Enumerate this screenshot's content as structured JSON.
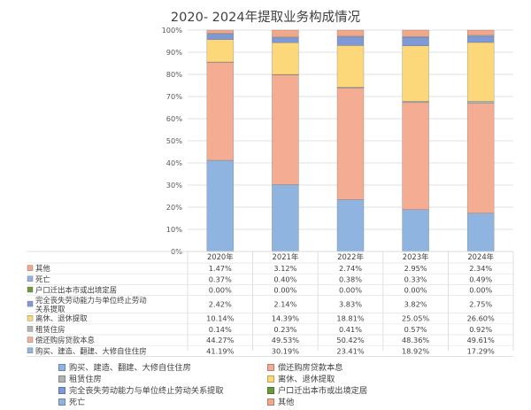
{
  "chart_data": {
    "type": "stacked-bar-100",
    "title": "2020- 2024年提取业务构成情况",
    "categories": [
      "2020年",
      "2021年",
      "2022年",
      "2023年",
      "2024年"
    ],
    "y_ticks": [
      "0%",
      "10%",
      "20%",
      "30%",
      "40%",
      "50%",
      "60%",
      "70%",
      "80%",
      "90%",
      "100%"
    ],
    "ylim": [
      0,
      100
    ],
    "grid": true,
    "legend_position": "bottom",
    "series": [
      {
        "key": "s1",
        "name": "购买、建造、翻建、大修自住住房",
        "color": "#8fb4e0",
        "values": [
          41.19,
          30.19,
          23.41,
          18.92,
          17.29
        ],
        "labels": [
          "41.19%",
          "30.19%",
          "23.41%",
          "18.92%",
          "17.29%"
        ]
      },
      {
        "key": "s2",
        "name": "偿还购房贷款本息",
        "color": "#f4ad92",
        "values": [
          44.27,
          49.53,
          50.42,
          48.36,
          49.61
        ],
        "labels": [
          "44.27%",
          "49.53%",
          "50.42%",
          "48.36%",
          "49.61%"
        ]
      },
      {
        "key": "s3",
        "name": "租赁住房",
        "color": "#b4b4b4",
        "values": [
          0.14,
          0.23,
          0.41,
          0.57,
          0.92
        ],
        "labels": [
          "0.14%",
          "0.23%",
          "0.41%",
          "0.57%",
          "0.92%"
        ]
      },
      {
        "key": "s4",
        "name": "离休、退休提取",
        "color": "#fdd87a",
        "values": [
          10.14,
          14.39,
          18.81,
          25.05,
          26.6
        ],
        "labels": [
          "10.14%",
          "14.39%",
          "18.81%",
          "25.05%",
          "26.60%"
        ]
      },
      {
        "key": "s5",
        "name": "完全丧失劳动能力与单位终止劳动关系提取",
        "color": "#7f98d6",
        "values": [
          2.42,
          2.14,
          3.83,
          3.82,
          2.75
        ],
        "labels": [
          "2.42%",
          "2.14%",
          "3.83%",
          "3.82%",
          "2.75%"
        ]
      },
      {
        "key": "s6",
        "name": "户口迁出本市或出境定居",
        "color": "#6a9a3c",
        "values": [
          0.0,
          0.0,
          0.0,
          0.0,
          0.0
        ],
        "labels": [
          "0.00%",
          "0.00%",
          "0.00%",
          "0.00%",
          "0.00%"
        ]
      },
      {
        "key": "s7",
        "name": "死亡",
        "color": "#92b3de",
        "values": [
          0.37,
          0.4,
          0.38,
          0.33,
          0.49
        ],
        "labels": [
          "0.37%",
          "0.40%",
          "0.38%",
          "0.33%",
          "0.49%"
        ]
      },
      {
        "key": "s8",
        "name": "其他",
        "color": "#f0a78a",
        "values": [
          1.47,
          3.12,
          2.74,
          2.95,
          2.34
        ],
        "labels": [
          "1.47%",
          "3.12%",
          "2.74%",
          "2.95%",
          "2.34%"
        ]
      }
    ],
    "table_row_order": [
      "s8",
      "s7",
      "s6",
      "s5",
      "s4",
      "s3",
      "s2",
      "s1"
    ],
    "table_row_titles": {
      "s5": [
        "完全丧失劳动能力与单位终止劳动",
        "关系提取"
      ]
    }
  }
}
